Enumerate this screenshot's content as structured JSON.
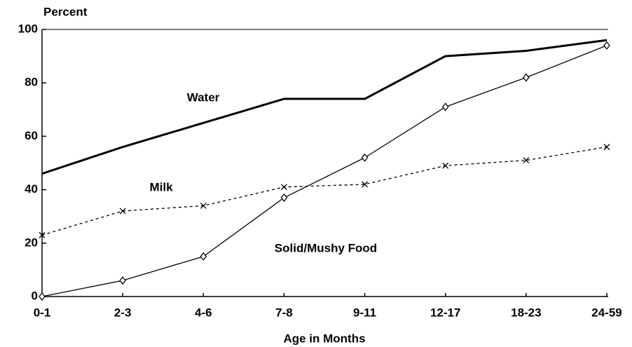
{
  "chart_data": {
    "type": "line",
    "ylabel": "Percent",
    "xlabel": "Age in Months",
    "categories": [
      "0-1",
      "2-3",
      "4-6",
      "7-8",
      "9-11",
      "12-17",
      "18-23",
      "24-59"
    ],
    "series": [
      {
        "name": "Water",
        "color": "#000000",
        "marker": "none",
        "dash": false,
        "width": 3,
        "values": [
          46,
          56,
          65,
          74,
          74,
          90,
          92,
          96
        ]
      },
      {
        "name": "Milk",
        "color": "#000000",
        "marker": "x",
        "dash": true,
        "width": 1.3,
        "values": [
          23,
          32,
          34,
          41,
          42,
          49,
          51,
          56
        ]
      },
      {
        "name": "Solid/Mushy Food",
        "color": "#000000",
        "marker": "diamond",
        "dash": false,
        "width": 1.3,
        "values": [
          0,
          6,
          15,
          37,
          52,
          71,
          82,
          94
        ]
      }
    ],
    "ylim": [
      0,
      100
    ],
    "yticks": [
      0,
      20,
      40,
      60,
      80,
      100
    ],
    "grid": false
  }
}
